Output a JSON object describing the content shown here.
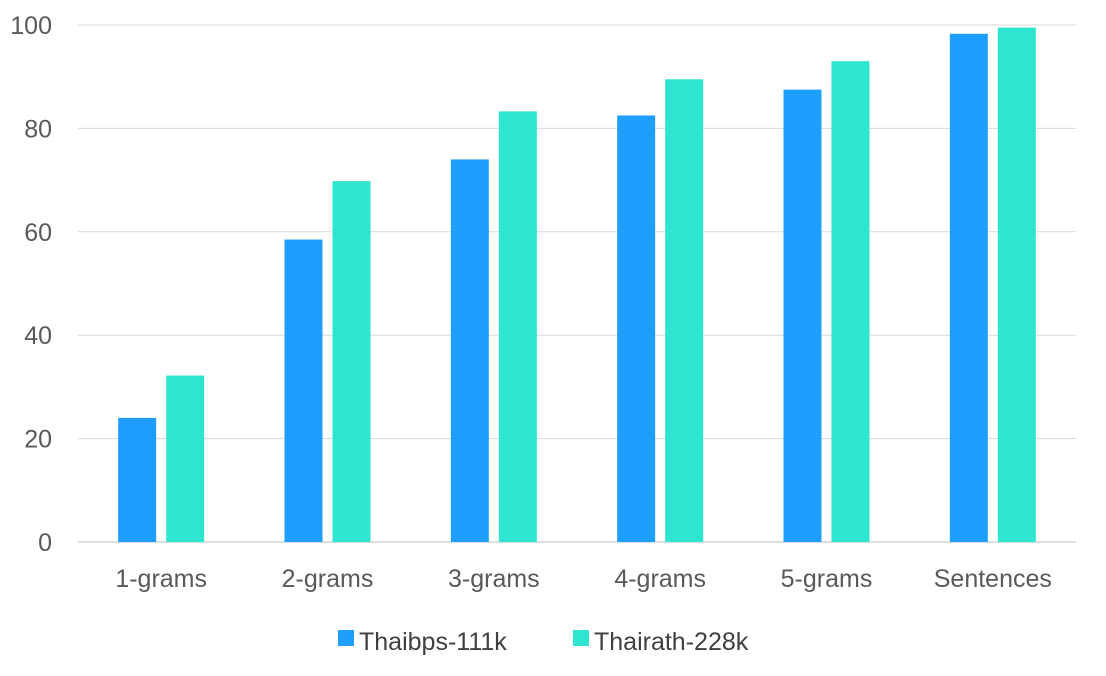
{
  "chart_data": {
    "type": "bar",
    "title": "",
    "xlabel": "",
    "ylabel": "",
    "categories": [
      "1-grams",
      "2-grams",
      "3-grams",
      "4-grams",
      "5-grams",
      "Sentences"
    ],
    "series": [
      {
        "name": "Thaibps-111k",
        "color": "#1E9FFF",
        "values": [
          24.0,
          58.5,
          74.0,
          82.5,
          87.5,
          98.3
        ]
      },
      {
        "name": "Thairath-228k",
        "color": "#2EE6D0",
        "values": [
          32.2,
          69.8,
          83.3,
          89.5,
          93.0,
          99.5
        ]
      }
    ],
    "ylim": [
      0,
      100
    ],
    "yticks": [
      0,
      20,
      40,
      60,
      80,
      100
    ],
    "grid": true,
    "legend_position": "bottom"
  }
}
